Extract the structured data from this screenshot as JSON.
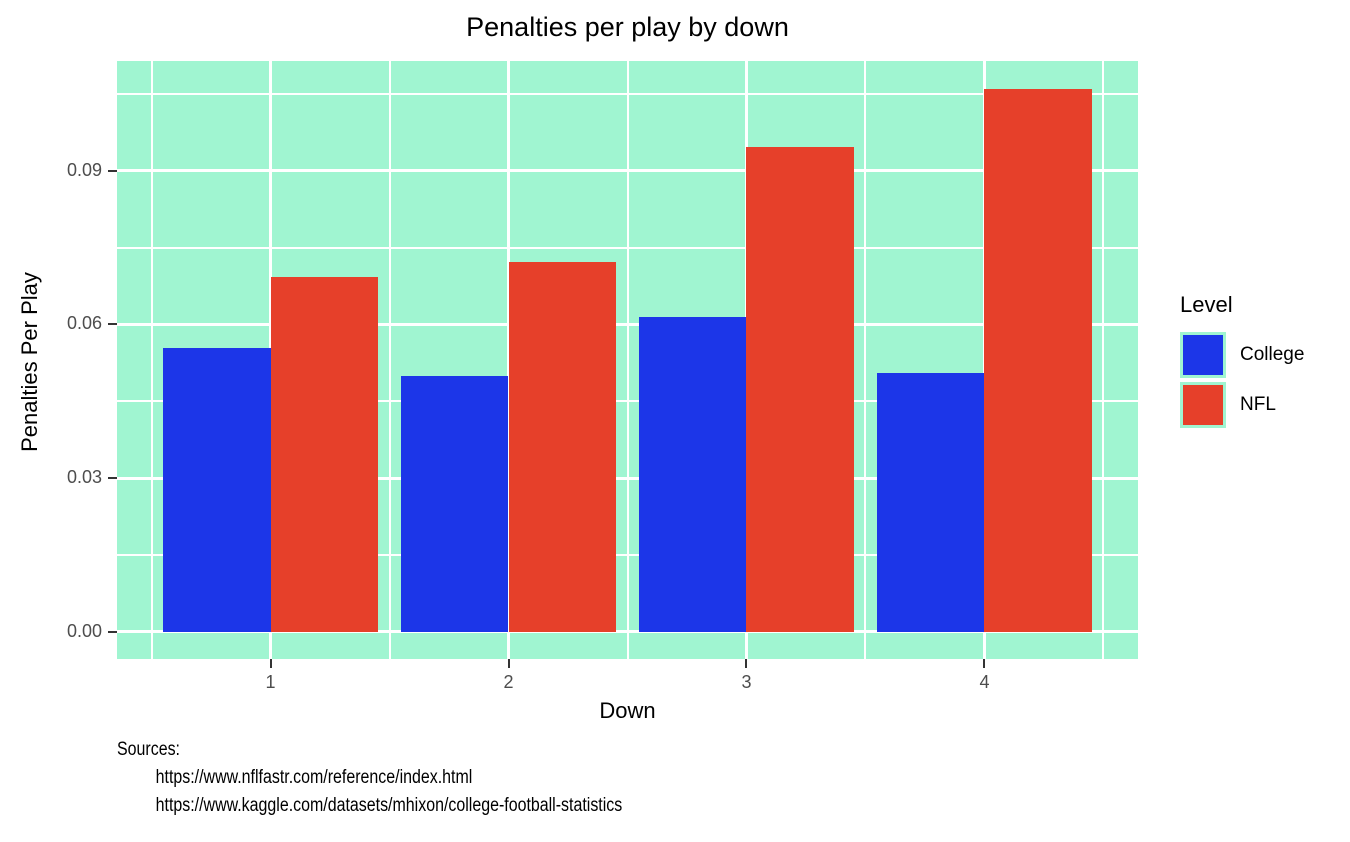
{
  "title": "Penalties per play by down",
  "chart_data": {
    "type": "bar",
    "title": "Penalties per play by down",
    "xlabel": "Down",
    "ylabel": "Penalties Per Play",
    "categories": [
      "1",
      "2",
      "3",
      "4"
    ],
    "x_positions": [
      1,
      2,
      3,
      4
    ],
    "series": [
      {
        "name": "College",
        "color": "#1C36E8",
        "values": [
          0.0554,
          0.05,
          0.0615,
          0.0506
        ]
      },
      {
        "name": "NFL",
        "color": "#E6402A",
        "values": [
          0.0692,
          0.0721,
          0.0946,
          0.106
        ]
      }
    ],
    "bar_width_per_series": 0.45,
    "xlim": [
      0.355,
      4.645
    ],
    "ylim": [
      -0.0053,
      0.1114
    ],
    "y_major_ticks": [
      0,
      0.03,
      0.06,
      0.09
    ],
    "y_tick_labels": [
      "0.00",
      "0.03",
      "0.06",
      "0.09"
    ],
    "y_minor_ticks": [
      0.015,
      0.045,
      0.075,
      0.105
    ],
    "x_minor_ticks": [
      0.5,
      1.5,
      2.5,
      3.5,
      4.5
    ],
    "grid": "white major and minor gridlines on mint panel",
    "panel_bg": "#A0F5D1",
    "grid_color": "#FFFFFF",
    "axis_text_color": "#4d4d4d",
    "legend_position": "right"
  },
  "legend": {
    "title": "Level",
    "items": [
      {
        "label": "College",
        "color": "#1C36E8"
      },
      {
        "label": "NFL",
        "color": "#E6402A"
      }
    ]
  },
  "caption": {
    "line1": "Sources:",
    "line2": "https://www.nflfastr.com/reference/index.html",
    "line3": "https://www.kaggle.com/datasets/mhixon/college-football-statistics"
  }
}
